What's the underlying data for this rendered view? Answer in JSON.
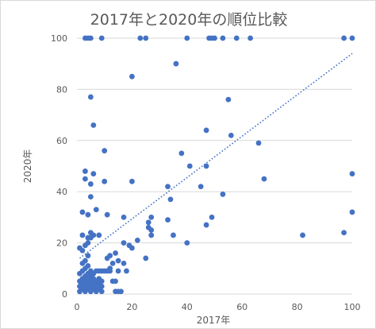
{
  "chart_data": {
    "type": "scatter",
    "title": "2017年と2020年の順位比較",
    "xlabel": "2017年",
    "ylabel": "2020年",
    "xlim": [
      0,
      100
    ],
    "ylim": [
      0,
      100
    ],
    "xticks": [
      0,
      20,
      40,
      60,
      80,
      100
    ],
    "yticks": [
      0,
      20,
      40,
      60,
      80,
      100
    ],
    "grid": "horizontal",
    "colors": {
      "points": "#4472c4",
      "trendline": "#4472c4",
      "grid": "#d9d9d9",
      "text": "#595959"
    },
    "trendline": {
      "type": "linear-dotted",
      "x": [
        1,
        100
      ],
      "y": [
        14,
        94
      ]
    },
    "points": [
      [
        3,
        100
      ],
      [
        4,
        100
      ],
      [
        5,
        100
      ],
      [
        9,
        100
      ],
      [
        23,
        100
      ],
      [
        25,
        100
      ],
      [
        40,
        100
      ],
      [
        48,
        100
      ],
      [
        49,
        100
      ],
      [
        50,
        100
      ],
      [
        53,
        100
      ],
      [
        58,
        100
      ],
      [
        63,
        100
      ],
      [
        97,
        100
      ],
      [
        100,
        100
      ],
      [
        36,
        90
      ],
      [
        20,
        85
      ],
      [
        5,
        77
      ],
      [
        55,
        76
      ],
      [
        6,
        66
      ],
      [
        47,
        64
      ],
      [
        56,
        62
      ],
      [
        66,
        59
      ],
      [
        10,
        56
      ],
      [
        38,
        55
      ],
      [
        41,
        50
      ],
      [
        47,
        50
      ],
      [
        3,
        48
      ],
      [
        6,
        47
      ],
      [
        100,
        47
      ],
      [
        3,
        45
      ],
      [
        10,
        44
      ],
      [
        20,
        44
      ],
      [
        68,
        45
      ],
      [
        5,
        43
      ],
      [
        33,
        42
      ],
      [
        45,
        42
      ],
      [
        53,
        39
      ],
      [
        5,
        38
      ],
      [
        34,
        37
      ],
      [
        7,
        33
      ],
      [
        2,
        32
      ],
      [
        11,
        31
      ],
      [
        100,
        32
      ],
      [
        4,
        31
      ],
      [
        17,
        30
      ],
      [
        27,
        30
      ],
      [
        49,
        30
      ],
      [
        26,
        28
      ],
      [
        26,
        26
      ],
      [
        33,
        29
      ],
      [
        47,
        27
      ],
      [
        2,
        23
      ],
      [
        4,
        22
      ],
      [
        5,
        24
      ],
      [
        6,
        23
      ],
      [
        5,
        22
      ],
      [
        8,
        23
      ],
      [
        27,
        25
      ],
      [
        27,
        23
      ],
      [
        35,
        23
      ],
      [
        82,
        23
      ],
      [
        97,
        24
      ],
      [
        22,
        21
      ],
      [
        4,
        20
      ],
      [
        40,
        20
      ],
      [
        17,
        20
      ],
      [
        19,
        19
      ],
      [
        20,
        18
      ],
      [
        1,
        18
      ],
      [
        3,
        19
      ],
      [
        2,
        17
      ],
      [
        14,
        16
      ],
      [
        12,
        15
      ],
      [
        11,
        14
      ],
      [
        25,
        14
      ],
      [
        13,
        12
      ],
      [
        15,
        13
      ],
      [
        17,
        12
      ],
      [
        12,
        10
      ],
      [
        15,
        9
      ],
      [
        18,
        9
      ],
      [
        1,
        1
      ],
      [
        1,
        3
      ],
      [
        1,
        5
      ],
      [
        1,
        8
      ],
      [
        2,
        2
      ],
      [
        2,
        4
      ],
      [
        2,
        6
      ],
      [
        2,
        9
      ],
      [
        2,
        12
      ],
      [
        3,
        1
      ],
      [
        3,
        3
      ],
      [
        3,
        5
      ],
      [
        3,
        7
      ],
      [
        3,
        10
      ],
      [
        3,
        13
      ],
      [
        4,
        2
      ],
      [
        4,
        4
      ],
      [
        4,
        6
      ],
      [
        4,
        8
      ],
      [
        4,
        11
      ],
      [
        4,
        15
      ],
      [
        5,
        1
      ],
      [
        5,
        3
      ],
      [
        5,
        5
      ],
      [
        5,
        7
      ],
      [
        5,
        9
      ],
      [
        6,
        2
      ],
      [
        6,
        4
      ],
      [
        6,
        6
      ],
      [
        6,
        8
      ],
      [
        7,
        1
      ],
      [
        7,
        3
      ],
      [
        7,
        5
      ],
      [
        7,
        9
      ],
      [
        8,
        2
      ],
      [
        8,
        4
      ],
      [
        8,
        6
      ],
      [
        8,
        9
      ],
      [
        9,
        1
      ],
      [
        9,
        3
      ],
      [
        9,
        5
      ],
      [
        9,
        9
      ],
      [
        10,
        9
      ],
      [
        11,
        9
      ],
      [
        12,
        9
      ],
      [
        13,
        5
      ],
      [
        14,
        5
      ],
      [
        14,
        1
      ],
      [
        15,
        1
      ],
      [
        16,
        1
      ]
    ]
  }
}
